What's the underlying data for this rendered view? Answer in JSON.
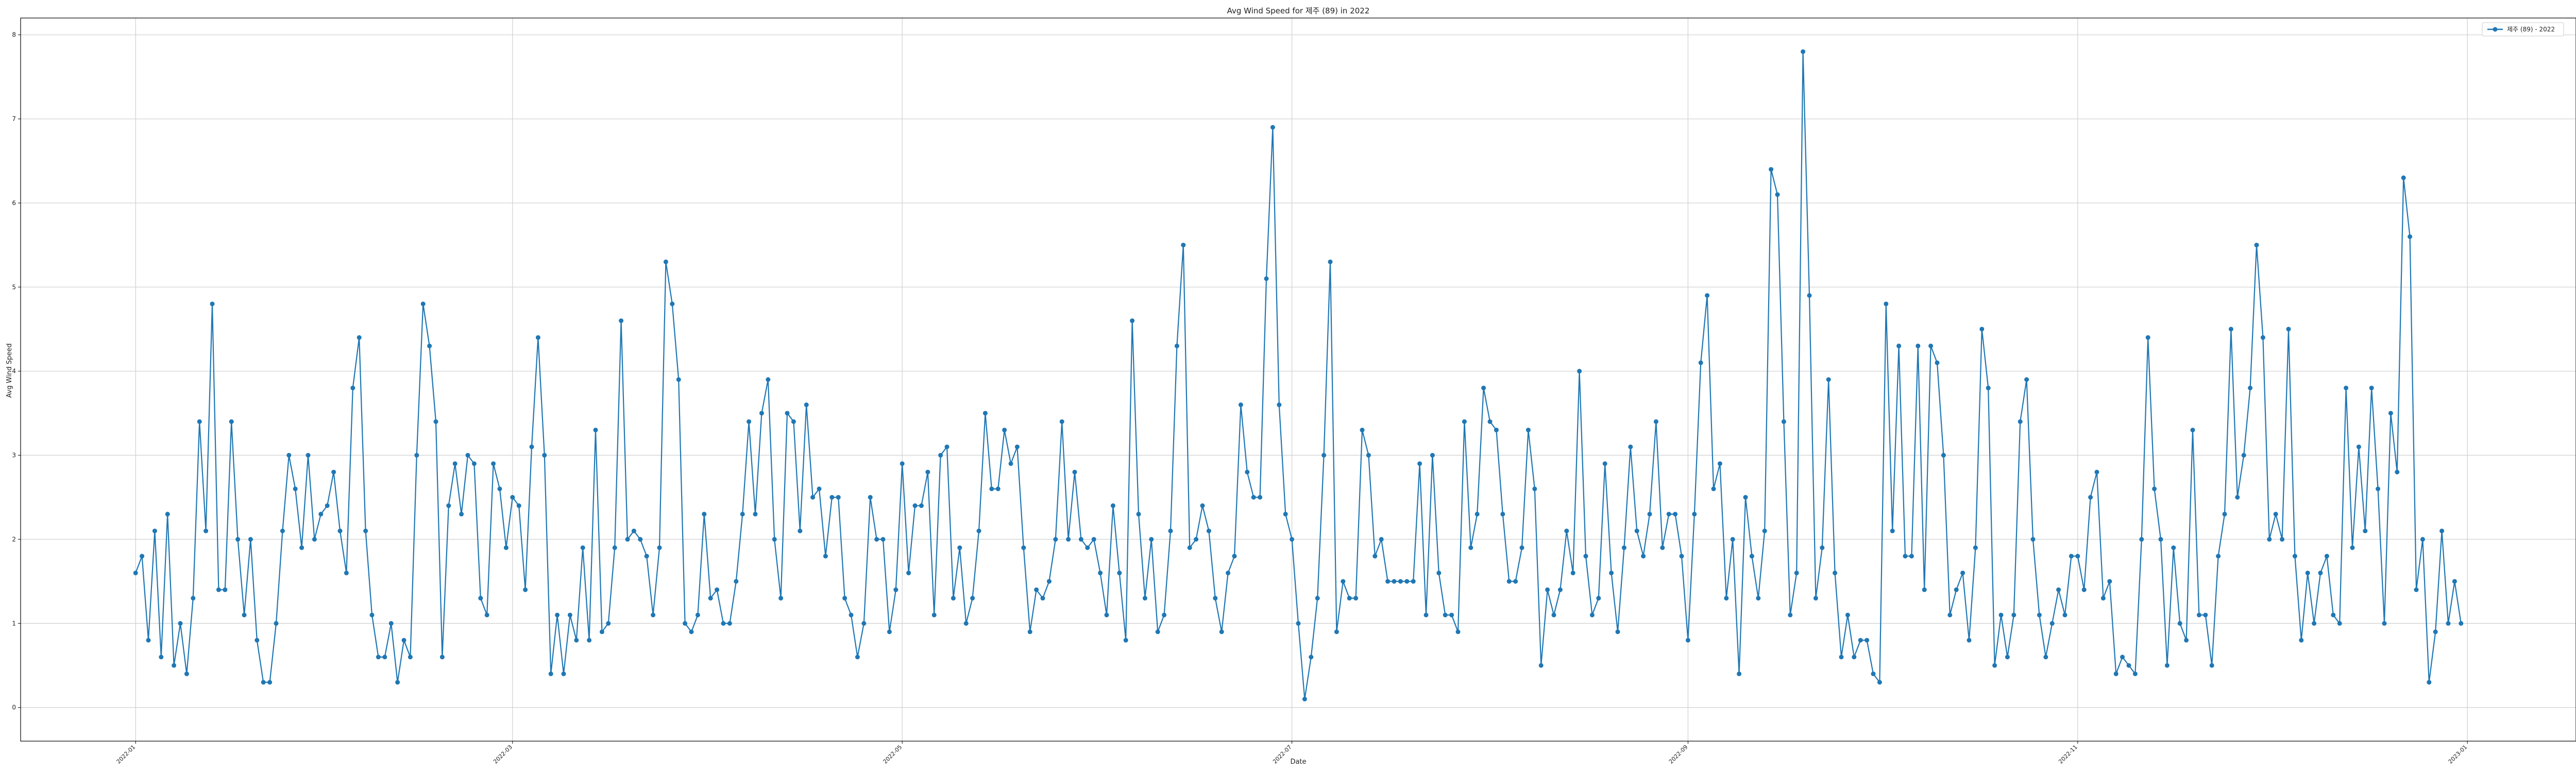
{
  "chart_data": {
    "type": "line",
    "title": "Avg Wind Speed for 제주 (89) in 2022",
    "xlabel": "Date",
    "ylabel": "Avg Wind Speed",
    "x_start": "2022-01-01",
    "x_range": [
      "2021-12-14",
      "2023-01-18"
    ],
    "ylim": [
      -0.4,
      8.2
    ],
    "y_ticks": [
      0,
      1,
      2,
      3,
      4,
      5,
      6,
      7,
      8
    ],
    "x_ticks": [
      "2022-01",
      "2022-03",
      "2022-05",
      "2022-07",
      "2022-09",
      "2022-11",
      "2023-01"
    ],
    "grid": true,
    "legend_position": "top-right",
    "color": "#1f77b4",
    "series": [
      {
        "name": "제주 (89) - 2022",
        "values": [
          1.6,
          1.8,
          0.8,
          2.1,
          0.6,
          2.3,
          0.5,
          1.0,
          0.4,
          1.3,
          3.4,
          2.1,
          4.8,
          1.4,
          1.4,
          3.4,
          2.0,
          1.1,
          2.0,
          0.8,
          0.3,
          0.3,
          1.0,
          2.1,
          3.0,
          2.6,
          1.9,
          3.0,
          2.0,
          2.3,
          2.4,
          2.8,
          2.1,
          1.6,
          3.8,
          4.4,
          2.1,
          1.1,
          0.6,
          0.6,
          1.0,
          0.3,
          0.8,
          0.6,
          3.0,
          4.8,
          4.3,
          3.4,
          0.6,
          2.4,
          2.9,
          2.3,
          3.0,
          2.9,
          1.3,
          1.1,
          2.9,
          2.6,
          1.9,
          2.5,
          2.4,
          1.4,
          3.1,
          4.4,
          3.0,
          0.4,
          1.1,
          0.4,
          1.1,
          0.8,
          1.9,
          0.8,
          3.3,
          0.9,
          1.0,
          1.9,
          4.6,
          2.0,
          2.1,
          2.0,
          1.8,
          1.1,
          1.9,
          5.3,
          4.8,
          3.9,
          1.0,
          0.9,
          1.1,
          2.3,
          1.3,
          1.4,
          1.0,
          1.0,
          1.5,
          2.3,
          3.4,
          2.3,
          3.5,
          3.9,
          2.0,
          1.3,
          3.5,
          3.4,
          2.1,
          3.6,
          2.5,
          2.6,
          1.8,
          2.5,
          2.5,
          1.3,
          1.1,
          0.6,
          1.0,
          2.5,
          2.0,
          2.0,
          0.9,
          1.4,
          2.9,
          1.6,
          2.4,
          2.4,
          2.8,
          1.1,
          3.0,
          3.1,
          1.3,
          1.9,
          1.0,
          1.3,
          2.1,
          3.5,
          2.6,
          2.6,
          3.3,
          2.9,
          3.1,
          1.9,
          0.9,
          1.4,
          1.3,
          1.5,
          2.0,
          3.4,
          2.0,
          2.8,
          2.0,
          1.9,
          2.0,
          1.6,
          1.1,
          2.4,
          1.6,
          0.8,
          4.6,
          2.3,
          1.3,
          2.0,
          0.9,
          1.1,
          2.1,
          4.3,
          5.5,
          1.9,
          2.0,
          2.4,
          2.1,
          1.3,
          0.9,
          1.6,
          1.8,
          3.6,
          2.8,
          2.5,
          2.5,
          5.1,
          6.9,
          3.6,
          2.3,
          2.0,
          1.0,
          0.1,
          0.6,
          1.3,
          3.0,
          5.3,
          0.9,
          1.5,
          1.3,
          1.3,
          3.3,
          3.0,
          1.8,
          2.0,
          1.5,
          1.5,
          1.5,
          1.5,
          1.5,
          2.9,
          1.1,
          3.0,
          1.6,
          1.1,
          1.1,
          0.9,
          3.4,
          1.9,
          2.3,
          3.8,
          3.4,
          3.3,
          2.3,
          1.5,
          1.5,
          1.9,
          3.3,
          2.6,
          0.5,
          1.4,
          1.1,
          1.4,
          2.1,
          1.6,
          4.0,
          1.8,
          1.1,
          1.3,
          2.9,
          1.6,
          0.9,
          1.9,
          3.1,
          2.1,
          1.8,
          2.3,
          3.4,
          1.9,
          2.3,
          2.3,
          1.8,
          0.8,
          2.3,
          4.1,
          4.9,
          2.6,
          2.9,
          1.3,
          2.0,
          0.4,
          2.5,
          1.8,
          1.3,
          2.1,
          6.4,
          6.1,
          3.4,
          1.1,
          1.6,
          7.8,
          4.9,
          1.3,
          1.9,
          3.9,
          1.6,
          0.6,
          1.1,
          0.6,
          0.8,
          0.8,
          0.4,
          0.3,
          4.8,
          2.1,
          4.3,
          1.8,
          1.8,
          4.3,
          1.4,
          4.3,
          4.1,
          3.0,
          1.1,
          1.4,
          1.6,
          0.8,
          1.9,
          4.5,
          3.8,
          0.5,
          1.1,
          0.6,
          1.1,
          3.4,
          3.9,
          2.0,
          1.1,
          0.6,
          1.0,
          1.4,
          1.1,
          1.8,
          1.8,
          1.4,
          2.5,
          2.8,
          1.3,
          1.5,
          0.4,
          0.6,
          0.5,
          0.4,
          2.0,
          4.4,
          2.6,
          2.0,
          0.5,
          1.9,
          1.0,
          0.8,
          3.3,
          1.1,
          1.1,
          0.5,
          1.8,
          2.3,
          4.5,
          2.5,
          3.0,
          3.8,
          5.5,
          4.4,
          2.0,
          2.3,
          2.0,
          4.5,
          1.8,
          0.8,
          1.6,
          1.0,
          1.6,
          1.8,
          1.1,
          1.0,
          3.8,
          1.9,
          3.1,
          2.1,
          3.8,
          2.6,
          1.0,
          3.5,
          2.8,
          6.3,
          5.6,
          1.4,
          2.0,
          0.3,
          0.9,
          2.1,
          1.0,
          1.5,
          1.0
        ]
      }
    ]
  }
}
